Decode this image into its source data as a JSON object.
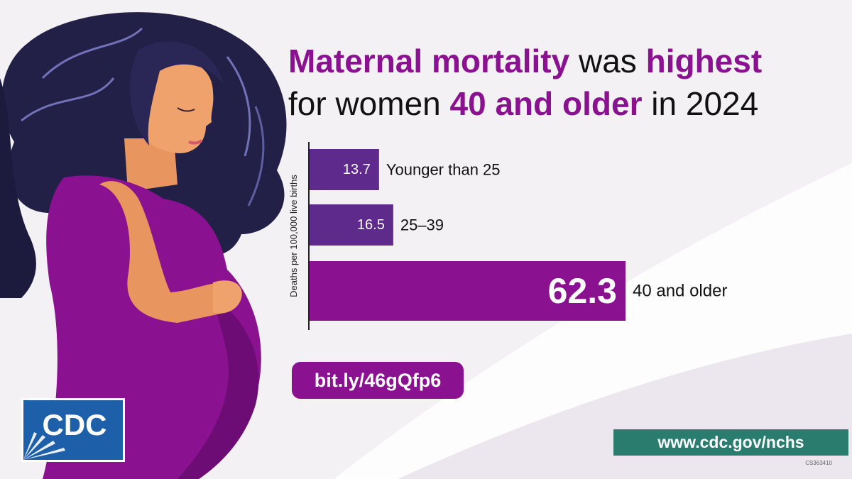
{
  "headline": {
    "part1": "Maternal mortality",
    "part2": " was ",
    "part3": "highest",
    "part4": "for women ",
    "part5": "40 and older",
    "part6": " in 2024"
  },
  "chart_data": {
    "type": "bar",
    "orientation": "horizontal",
    "ylabel": "Deaths per 100,000 live births",
    "categories": [
      "Younger than 25",
      "25–39",
      "40 and older"
    ],
    "values": [
      13.7,
      16.5,
      62.3
    ],
    "value_labels": [
      "13.7",
      "16.5",
      "62.3"
    ],
    "xlim": [
      0,
      70
    ],
    "colors": [
      "#5e2a8c",
      "#5e2a8c",
      "#8a1190"
    ],
    "grid": false
  },
  "link": {
    "label": "bit.ly/46gQfp6"
  },
  "footer": {
    "site": "www.cdc.gov/nchs",
    "code": "CS363410"
  },
  "logo": {
    "text": "CDC"
  },
  "colors": {
    "accent": "#8a1190",
    "bar_dark": "#5e2a8c",
    "teal": "#2a7c6f",
    "logo_blue": "#1d5fa8"
  }
}
